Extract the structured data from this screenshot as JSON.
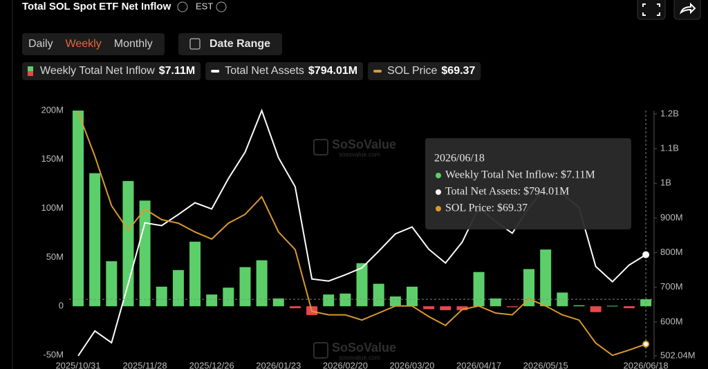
{
  "header": {
    "title": "Total SOL Spot ETF Net Inflow",
    "timezone": "EST"
  },
  "controls": {
    "periods": [
      "Daily",
      "Weekly",
      "Monthly"
    ],
    "active_period": 1,
    "date_range": "Date Range"
  },
  "watermark": {
    "brand": "SoSoValue",
    "site": "sosovalue.com"
  },
  "chart_data": {
    "type": "bar",
    "categories": [
      "2025/10/31",
      null,
      null,
      null,
      "2025/11/28",
      null,
      null,
      null,
      "2025/12/26",
      null,
      null,
      null,
      "2026/01/23",
      null,
      null,
      null,
      "2026/02/20",
      null,
      null,
      null,
      "2026/03/20",
      null,
      null,
      null,
      "2026/04/17",
      null,
      null,
      null,
      "2026/05/15",
      null,
      null,
      null,
      null,
      null,
      "2026/06/18"
    ],
    "series": [
      {
        "name": "Weekly Total Net Inflow",
        "color": "#5ccf6a",
        "negative_color": "#e5484d",
        "axis": "y",
        "values": [
          200,
          136,
          46,
          128,
          108,
          20,
          37,
          66,
          12,
          19,
          40,
          47,
          8,
          -2,
          -9,
          12,
          13,
          44,
          23,
          10,
          20,
          -3,
          -4,
          -4,
          35,
          8,
          -1,
          38,
          58,
          14,
          1,
          -6,
          0.5,
          -2,
          7.11
        ]
      },
      {
        "name": "Total Net Assets",
        "color": "#ffffff",
        "axis": "y2",
        "values": [
          502.04,
          574,
          540,
          710,
          886,
          878,
          910,
          944,
          926,
          1014,
          1090,
          1210,
          1074,
          990,
          724,
          718,
          736,
          756,
          804,
          854,
          874,
          810,
          770,
          830,
          930,
          890,
          856,
          930,
          990,
          970,
          930,
          760,
          716,
          764,
          794.01
        ]
      },
      {
        "name": "SOL Price",
        "color": "#d99a2e",
        "axis": "y3",
        "values": [
          201,
          176,
          148,
          134,
          146,
          140,
          138,
          133,
          129,
          138,
          143,
          153,
          133,
          123,
          88,
          86,
          86,
          83,
          87,
          91,
          91,
          85,
          80,
          89,
          91,
          87,
          86,
          95,
          91,
          86,
          83,
          70,
          63,
          66,
          69.37
        ]
      }
    ],
    "legend_values": [
      "$7.11M",
      "$794.01M",
      "$69.37"
    ],
    "ylim": [
      -50,
      200
    ],
    "yticks": [
      {
        "value": 200,
        "label": "200M"
      },
      {
        "value": 150,
        "label": "150M"
      },
      {
        "value": 100,
        "label": "100M"
      },
      {
        "value": 50,
        "label": "50M"
      },
      0,
      {
        "value": -50,
        "label": "-50M"
      }
    ],
    "y2lim": [
      502.04,
      1200
    ],
    "y2ticks": [
      {
        "value": 1200,
        "label": "1.2B"
      },
      {
        "value": 1100,
        "label": "1.1B"
      },
      {
        "value": 1000,
        "label": "1B"
      },
      {
        "value": 900,
        "label": "900M"
      },
      {
        "value": 800,
        "label": "800M"
      },
      {
        "value": 700,
        "label": "700M"
      },
      {
        "value": 600,
        "label": "600M"
      },
      {
        "value": 502.04,
        "label": "502.04M"
      }
    ],
    "y3lim": [
      62.7,
      201.9
    ],
    "crosshair": 34,
    "tooltip": {
      "title": "2026/06/18",
      "lines": [
        "Weekly Total Net Inflow: $7.11M",
        "Total Net Assets: $794.01M",
        "SOL Price: $69.37"
      ]
    }
  }
}
